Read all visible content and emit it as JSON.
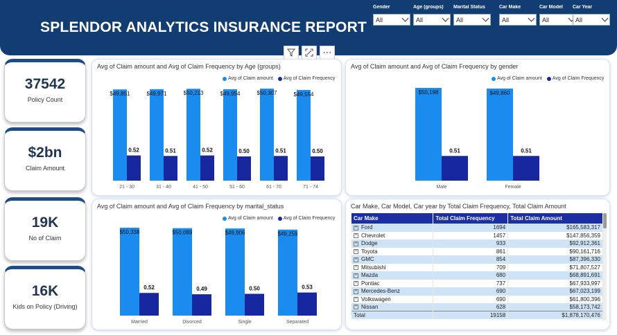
{
  "header": {
    "title": "SPLENDOR ANALYTICS INSURANCE REPORT"
  },
  "slicers": [
    {
      "label": "Gender",
      "value": "All"
    },
    {
      "label": "Age (groups)",
      "value": "All"
    },
    {
      "label": "Marital Status",
      "value": "All"
    },
    {
      "label": "Car Make",
      "value": "All"
    },
    {
      "label": "Car Model",
      "value": "All"
    },
    {
      "label": "Car Year",
      "value": "All"
    }
  ],
  "kpis": [
    {
      "value": "37542",
      "label": "Policy Count"
    },
    {
      "value": "$2bn",
      "label": "Claim Amount"
    },
    {
      "value": "19K",
      "label": "No of Claim"
    },
    {
      "value": "16K",
      "label": "Kids on Policy (Driving)"
    }
  ],
  "colors": {
    "claim_amount": "#1a8cf0",
    "claim_frequency": "#1627a0",
    "header": "#123d72"
  },
  "chart_data": [
    {
      "type": "bar",
      "title": "Avg of Claim amount and Avg of Claim Frequency by Age (groups)",
      "categories": [
        "21 - 30",
        "31 - 40",
        "41 - 50",
        "51 - 60",
        "61 - 70",
        "71 - 74"
      ],
      "series": [
        {
          "name": "Avg of Claim amount",
          "values": [
            49851,
            49971,
            50213,
            49954,
            50307,
            49554
          ],
          "labels": [
            "$49,851",
            "$49,971",
            "$50,213",
            "$49,954",
            "$50,307",
            "$49,554"
          ]
        },
        {
          "name": "Avg of Claim Frequency",
          "values": [
            0.52,
            0.51,
            0.52,
            0.5,
            0.51,
            0.5
          ],
          "labels": [
            "0.52",
            "0.51",
            "0.52",
            "0.50",
            "0.51",
            "0.50"
          ]
        }
      ]
    },
    {
      "type": "bar",
      "title": "Avg of Claim amount and Avg of Claim Frequency by gender",
      "categories": [
        "Male",
        "Female"
      ],
      "series": [
        {
          "name": "Avg of Claim amount",
          "values": [
            50198,
            49860
          ],
          "labels": [
            "$50,198",
            "$49,860"
          ]
        },
        {
          "name": "Avg of Claim Frequency",
          "values": [
            0.51,
            0.51
          ],
          "labels": [
            "0.51",
            "0.51"
          ]
        }
      ]
    },
    {
      "type": "bar",
      "title": "Avg of Claim amount and Avg of Claim Frequency by marital_status",
      "categories": [
        "Married",
        "Divorced",
        "Single",
        "Separated"
      ],
      "series": [
        {
          "name": "Avg of Claim amount",
          "values": [
            50338,
            50089,
            49906,
            49259
          ],
          "labels": [
            "$50,338",
            "$50,089",
            "$49,906",
            "$49,259"
          ]
        },
        {
          "name": "Avg of Claim Frequency",
          "values": [
            0.52,
            0.49,
            0.5,
            0.53
          ],
          "labels": [
            "0.52",
            "0.49",
            "0.50",
            "0.53"
          ]
        }
      ]
    },
    {
      "type": "table",
      "title": "Car Make, Car Model, Car year by Total Claim Frequency, Total Claim Amount",
      "columns": [
        "Car Make",
        "Total Claim Frequency",
        "Total Claim Amount"
      ],
      "rows": [
        [
          "Ford",
          "1694",
          "$165,583,317"
        ],
        [
          "Chevrolet",
          "1457",
          "$147,856,359"
        ],
        [
          "Dodge",
          "933",
          "$92,912,361"
        ],
        [
          "Toyota",
          "861",
          "$90,161,716"
        ],
        [
          "GMC",
          "854",
          "$87,396,330"
        ],
        [
          "Mitsubishi",
          "709",
          "$71,807,527"
        ],
        [
          "Mazda",
          "680",
          "$68,891,691"
        ],
        [
          "Pontiac",
          "737",
          "$67,933,997"
        ],
        [
          "Mercedes-Benz",
          "690",
          "$67,023,199"
        ],
        [
          "Volkswagen",
          "690",
          "$61,800,396"
        ],
        [
          "Nissan",
          "628",
          "$58,173,742"
        ]
      ],
      "total": [
        "Total",
        "19158",
        "$1,878,170,476"
      ]
    }
  ]
}
